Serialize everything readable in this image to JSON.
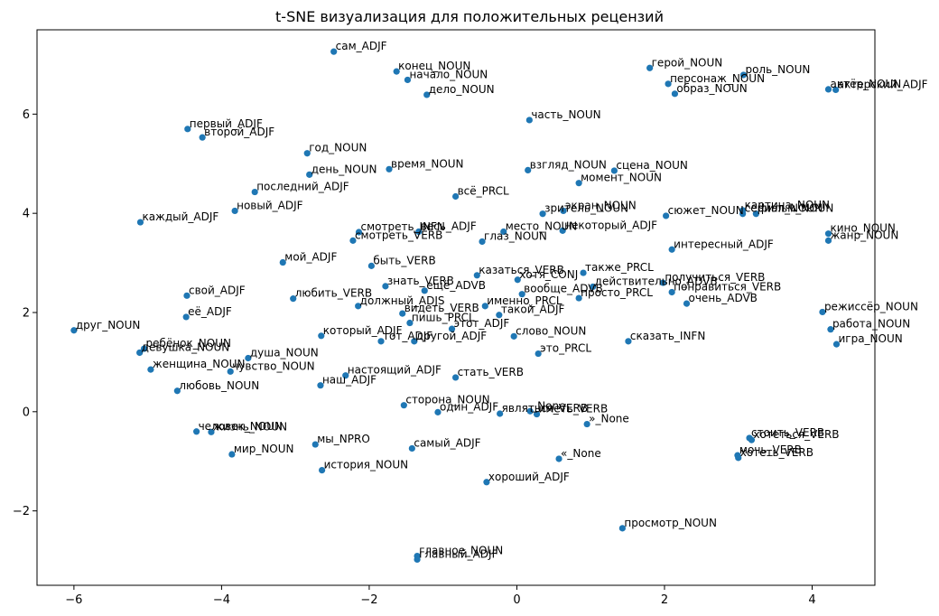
{
  "chart_data": {
    "type": "scatter",
    "title": "t-SNE визуализация для положительных рецензий",
    "xlabel": "",
    "ylabel": "",
    "xlim": [
      -6.5,
      4.85
    ],
    "ylim": [
      -3.5,
      7.7
    ],
    "xticks": [
      -6,
      -4,
      -2,
      0,
      2,
      4
    ],
    "yticks": [
      -2,
      0,
      2,
      4,
      6
    ],
    "xtick_labels": [
      "−6",
      "−4",
      "−2",
      "0",
      "2",
      "4"
    ],
    "ytick_labels": [
      "−2",
      "0",
      "2",
      "4",
      "6"
    ],
    "grid": false,
    "color": "#1f77b4",
    "points": [
      {
        "x": -2.48,
        "y": 7.26,
        "label": "сам_ADJF"
      },
      {
        "x": -1.63,
        "y": 6.86,
        "label": "конец_NOUN"
      },
      {
        "x": -1.48,
        "y": 6.69,
        "label": "начало_NOUN"
      },
      {
        "x": -1.22,
        "y": 6.39,
        "label": "дело_NOUN"
      },
      {
        "x": 1.8,
        "y": 6.93,
        "label": "герой_NOUN"
      },
      {
        "x": 3.07,
        "y": 6.79,
        "label": "роль_NOUN"
      },
      {
        "x": 2.05,
        "y": 6.61,
        "label": "персонаж_NOUN"
      },
      {
        "x": 2.14,
        "y": 6.41,
        "label": "образ_NOUN"
      },
      {
        "x": 4.22,
        "y": 6.5,
        "label": "актёр_NOUN"
      },
      {
        "x": 4.32,
        "y": 6.49,
        "label": "актерский_ADJF"
      },
      {
        "x": 0.17,
        "y": 5.88,
        "label": "часть_NOUN"
      },
      {
        "x": -4.46,
        "y": 5.7,
        "label": "первый_ADJF"
      },
      {
        "x": -4.26,
        "y": 5.53,
        "label": "второй_ADJF"
      },
      {
        "x": -2.84,
        "y": 5.21,
        "label": "год_NOUN"
      },
      {
        "x": -1.73,
        "y": 4.89,
        "label": "время_NOUN"
      },
      {
        "x": -2.81,
        "y": 4.78,
        "label": "день_NOUN"
      },
      {
        "x": 0.15,
        "y": 4.87,
        "label": "взгляд_NOUN"
      },
      {
        "x": 1.32,
        "y": 4.86,
        "label": "сцена_NOUN"
      },
      {
        "x": 0.84,
        "y": 4.61,
        "label": "момент_NOUN"
      },
      {
        "x": -3.55,
        "y": 4.43,
        "label": "последний_ADJF"
      },
      {
        "x": -0.83,
        "y": 4.34,
        "label": "всё_PRCL"
      },
      {
        "x": -3.82,
        "y": 4.05,
        "label": "новый_ADJF"
      },
      {
        "x": -5.1,
        "y": 3.82,
        "label": "каждый_ADJF"
      },
      {
        "x": 0.63,
        "y": 4.05,
        "label": "экран_NOUN"
      },
      {
        "x": 0.35,
        "y": 3.99,
        "label": "зритель_NOUN"
      },
      {
        "x": 2.02,
        "y": 3.95,
        "label": "сюжет_NOUN"
      },
      {
        "x": 3.06,
        "y": 4.06,
        "label": "картина_NOUN"
      },
      {
        "x": 3.24,
        "y": 3.99,
        "label": "фильм_NOUN"
      },
      {
        "x": 3.06,
        "y": 3.99,
        "label": "сериал_NOUN"
      },
      {
        "x": -2.14,
        "y": 3.62,
        "label": "смотреть_INFN"
      },
      {
        "x": -1.33,
        "y": 3.63,
        "label": "весь_ADJF"
      },
      {
        "x": -0.18,
        "y": 3.63,
        "label": "место_NOUN"
      },
      {
        "x": 0.62,
        "y": 3.65,
        "label": "некоторый_ADJF"
      },
      {
        "x": -2.22,
        "y": 3.45,
        "label": "смотреть_VERB"
      },
      {
        "x": -0.47,
        "y": 3.43,
        "label": "глаз_NOUN"
      },
      {
        "x": 4.22,
        "y": 3.59,
        "label": "кино_NOUN"
      },
      {
        "x": 4.22,
        "y": 3.45,
        "label": "жанр_NOUN"
      },
      {
        "x": 2.1,
        "y": 3.27,
        "label": "интересный_ADJF"
      },
      {
        "x": -3.17,
        "y": 3.01,
        "label": "мой_ADJF"
      },
      {
        "x": -1.97,
        "y": 2.94,
        "label": "быть_VERB"
      },
      {
        "x": -0.54,
        "y": 2.75,
        "label": "казаться_VERB"
      },
      {
        "x": 0.9,
        "y": 2.8,
        "label": "также_PRCL"
      },
      {
        "x": 0.01,
        "y": 2.66,
        "label": "хотя_CONJ"
      },
      {
        "x": -1.78,
        "y": 2.53,
        "label": "знать_VERB"
      },
      {
        "x": -1.25,
        "y": 2.44,
        "label": "ещё_ADVB"
      },
      {
        "x": 1.03,
        "y": 2.52,
        "label": "действительно_ADVB"
      },
      {
        "x": 1.98,
        "y": 2.6,
        "label": "получиться_VERB"
      },
      {
        "x": 2.1,
        "y": 2.41,
        "label": "понравиться_VERB"
      },
      {
        "x": -4.47,
        "y": 2.34,
        "label": "свой_ADJF"
      },
      {
        "x": -3.03,
        "y": 2.28,
        "label": "любить_VERB"
      },
      {
        "x": 0.07,
        "y": 2.37,
        "label": "вообще_ADVB"
      },
      {
        "x": 0.84,
        "y": 2.29,
        "label": "просто_PRCL"
      },
      {
        "x": 2.3,
        "y": 2.18,
        "label": "очень_ADVB"
      },
      {
        "x": -2.15,
        "y": 2.13,
        "label": "должный_ADJS"
      },
      {
        "x": -0.43,
        "y": 2.13,
        "label": "именно_PRCL"
      },
      {
        "x": -1.55,
        "y": 1.98,
        "label": "видеть_VERB"
      },
      {
        "x": -0.24,
        "y": 1.95,
        "label": "такой_ADJF"
      },
      {
        "x": 4.14,
        "y": 2.01,
        "label": "режиссёр_NOUN"
      },
      {
        "x": -4.48,
        "y": 1.91,
        "label": "её_ADJF"
      },
      {
        "x": -1.45,
        "y": 1.79,
        "label": "пишь_PRCL"
      },
      {
        "x": -0.88,
        "y": 1.67,
        "label": "этот_ADJF"
      },
      {
        "x": -6.0,
        "y": 1.64,
        "label": "друг_NOUN"
      },
      {
        "x": 4.25,
        "y": 1.66,
        "label": "работа_NOUN"
      },
      {
        "x": -2.65,
        "y": 1.53,
        "label": "который_ADJF"
      },
      {
        "x": -0.04,
        "y": 1.52,
        "label": "слово_NOUN"
      },
      {
        "x": -1.84,
        "y": 1.42,
        "label": "тот_ADJF"
      },
      {
        "x": -1.39,
        "y": 1.42,
        "label": "другой_ADJF"
      },
      {
        "x": 1.51,
        "y": 1.42,
        "label": "сказать_INFN"
      },
      {
        "x": 4.33,
        "y": 1.36,
        "label": "игра_NOUN"
      },
      {
        "x": -5.05,
        "y": 1.27,
        "label": "ребёнок_NOUN"
      },
      {
        "x": -5.11,
        "y": 1.19,
        "label": "девушка_NOUN"
      },
      {
        "x": 0.29,
        "y": 1.17,
        "label": "это_PRCL"
      },
      {
        "x": -3.64,
        "y": 1.08,
        "label": "душа_NOUN"
      },
      {
        "x": -4.96,
        "y": 0.85,
        "label": "женщина_NOUN"
      },
      {
        "x": -3.88,
        "y": 0.81,
        "label": "чувство_NOUN"
      },
      {
        "x": -2.32,
        "y": 0.73,
        "label": "настоящий_ADJF"
      },
      {
        "x": -0.83,
        "y": 0.69,
        "label": "стать_VERB"
      },
      {
        "x": -2.66,
        "y": 0.53,
        "label": "наш_ADJF"
      },
      {
        "x": -4.6,
        "y": 0.42,
        "label": "любовь_NOUN"
      },
      {
        "x": -1.53,
        "y": 0.13,
        "label": "сторона_NOUN"
      },
      {
        "x": -1.07,
        "y": -0.01,
        "label": "один_ADJF"
      },
      {
        "x": 0.18,
        "y": 0.01,
        "label": "_None"
      },
      {
        "x": -0.23,
        "y": -0.04,
        "label": "являться_VERB"
      },
      {
        "x": 0.27,
        "y": -0.05,
        "label": "иметь_VERB"
      },
      {
        "x": 0.95,
        "y": -0.25,
        "label": "»_None"
      },
      {
        "x": -4.34,
        "y": -0.4,
        "label": "человек_NOUN"
      },
      {
        "x": -4.14,
        "y": -0.41,
        "label": "жизнь_NOUN"
      },
      {
        "x": 3.15,
        "y": -0.53,
        "label": "стоить_VERB"
      },
      {
        "x": 3.18,
        "y": -0.57,
        "label": "хотеться_VERB"
      },
      {
        "x": -2.73,
        "y": -0.66,
        "label": "мы_NPRO"
      },
      {
        "x": -1.42,
        "y": -0.74,
        "label": "самый_ADJF"
      },
      {
        "x": -3.86,
        "y": -0.86,
        "label": "мир_NOUN"
      },
      {
        "x": 2.99,
        "y": -0.88,
        "label": "мочь_VERB"
      },
      {
        "x": 3.0,
        "y": -0.93,
        "label": "хотеть_VERB"
      },
      {
        "x": 0.57,
        "y": -0.95,
        "label": "«_None"
      },
      {
        "x": -2.64,
        "y": -1.18,
        "label": "история_NOUN"
      },
      {
        "x": -0.41,
        "y": -1.42,
        "label": "хороший_ADJF"
      },
      {
        "x": 1.43,
        "y": -2.35,
        "label": "просмотр_NOUN"
      },
      {
        "x": -1.35,
        "y": -2.91,
        "label": "главное_NOUN"
      },
      {
        "x": -1.35,
        "y": -2.98,
        "label": "главный_ADJF"
      }
    ]
  }
}
